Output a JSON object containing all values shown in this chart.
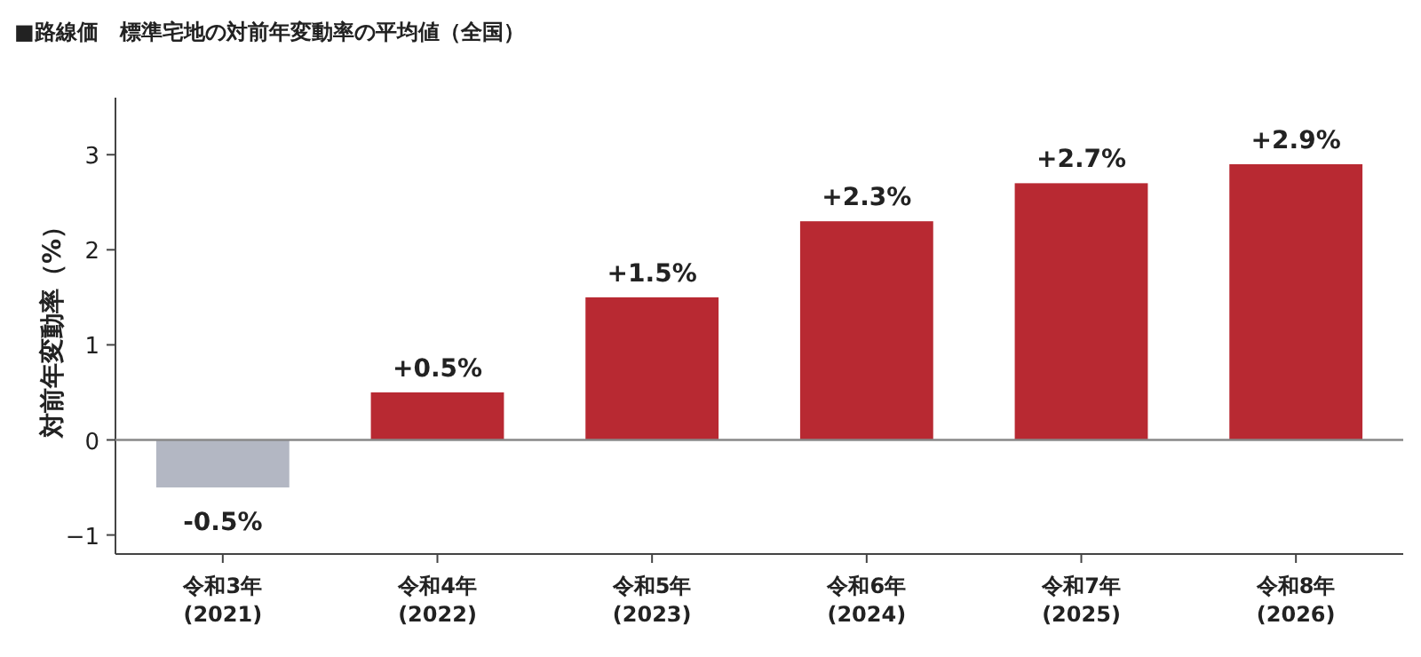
{
  "chart_data": {
    "type": "bar",
    "title": "■路線価　標準宅地の対前年変動率の平均値（全国）",
    "ylabel": "対前年変動率（%）",
    "categories": [
      "令和3年\n(2021)",
      "令和4年\n(2022)",
      "令和5年\n(2023)",
      "令和6年\n(2024)",
      "令和7年\n(2025)",
      "令和8年\n(2026)"
    ],
    "values": [
      -0.5,
      0.5,
      1.5,
      2.3,
      2.7,
      2.9
    ],
    "colors": [
      "#b3b7c3",
      "#b82932",
      "#b82932",
      "#b82932",
      "#b82932",
      "#b82932"
    ],
    "value_labels": [
      "-0.5%",
      "+0.5%",
      "+1.5%",
      "+2.3%",
      "+2.7%",
      "+2.9%"
    ],
    "ylim": [
      -1.2,
      3.6
    ],
    "yticks": [
      {
        "value": -1,
        "label": "−1"
      },
      0,
      1,
      2,
      3
    ],
    "ref_lines": [
      {
        "axis": "y",
        "value": 0,
        "color": "#888888"
      }
    ]
  }
}
